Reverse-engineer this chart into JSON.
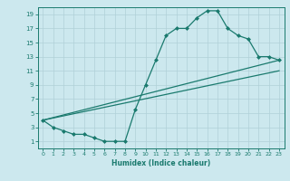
{
  "xlabel": "Humidex (Indice chaleur)",
  "ylabel": "",
  "bg_color": "#cce8ee",
  "grid_color": "#b0d0d8",
  "line_color": "#1a7a6e",
  "xlim": [
    -0.5,
    23.5
  ],
  "ylim": [
    0,
    20
  ],
  "xticks": [
    0,
    1,
    2,
    3,
    4,
    5,
    6,
    7,
    8,
    9,
    10,
    11,
    12,
    13,
    14,
    15,
    16,
    17,
    18,
    19,
    20,
    21,
    22,
    23
  ],
  "yticks": [
    1,
    3,
    5,
    7,
    9,
    11,
    13,
    15,
    17,
    19
  ],
  "line1_x": [
    0,
    1,
    2,
    3,
    4,
    5,
    6,
    7,
    8,
    9,
    10,
    11,
    12,
    13,
    14,
    15,
    16,
    17,
    18,
    19,
    20,
    21,
    22,
    23
  ],
  "line1_y": [
    4,
    3,
    2.5,
    2,
    2,
    1.5,
    1,
    1,
    1,
    5.5,
    9,
    12.5,
    16,
    17,
    17,
    18.5,
    19.5,
    19.5,
    17,
    16,
    15.5,
    13,
    13,
    12.5
  ],
  "line2_x": [
    0,
    23
  ],
  "line2_y": [
    4,
    12.5
  ],
  "line3_x": [
    0,
    23
  ],
  "line3_y": [
    4,
    11
  ],
  "marker": "D",
  "marker_size": 2,
  "linewidth": 0.9
}
